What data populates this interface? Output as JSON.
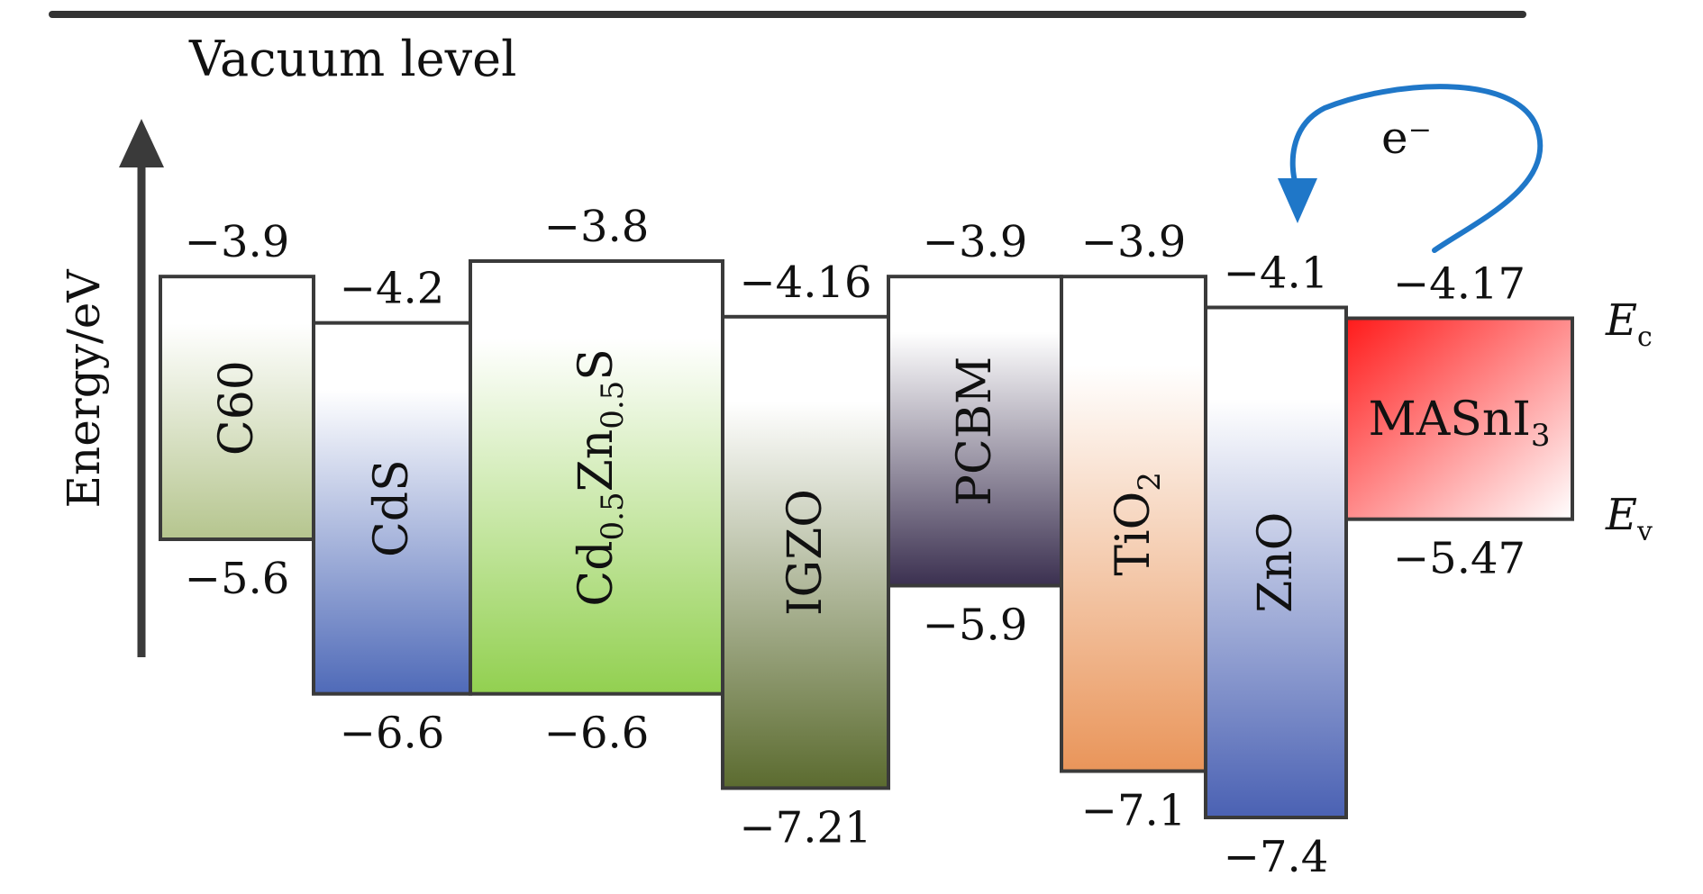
{
  "title": "Vacuum level",
  "y_axis_label": "Energy/eV",
  "electron_label": "e⁻",
  "level_labels": {
    "conduction": "E",
    "conduction_sub": "c",
    "valence": "E",
    "valence_sub": "v"
  },
  "materials": [
    {
      "name": "C60",
      "sub": "",
      "cb": -3.9,
      "vb": -5.6,
      "cb_label": "−3.9",
      "vb_label": "−5.6",
      "colors": [
        "#ffffff",
        "#b5c58e"
      ],
      "text_vertical": true
    },
    {
      "name": "CdS",
      "sub": "",
      "cb": -4.2,
      "vb": -6.6,
      "cb_label": "−4.2",
      "vb_label": "−6.6",
      "colors": [
        "#ffffff",
        "#4f6ab8"
      ],
      "text_vertical": true
    },
    {
      "name": "Cd0.5Zn0.5S",
      "parts": [
        "Cd",
        "0.5",
        "Zn",
        "0.5",
        "S"
      ],
      "cb": -3.8,
      "vb": -6.6,
      "cb_label": "−3.8",
      "vb_label": "−6.6",
      "colors": [
        "#ffffff",
        "#92d050"
      ],
      "text_vertical": true
    },
    {
      "name": "IGZO",
      "sub": "",
      "cb": -4.16,
      "vb": -7.21,
      "cb_label": "−4.16",
      "vb_label": "−7.21",
      "colors": [
        "#ffffff",
        "#5b6b2f"
      ],
      "text_vertical": true
    },
    {
      "name": "PCBM",
      "sub": "",
      "cb": -3.9,
      "vb": -5.9,
      "cb_label": "−3.9",
      "vb_label": "−5.9",
      "colors": [
        "#ffffff",
        "#3b3050"
      ],
      "text_vertical": true
    },
    {
      "name": "TiO2",
      "parts": [
        "TiO",
        "2"
      ],
      "cb": -3.9,
      "vb": -7.1,
      "cb_label": "−3.9",
      "vb_label": "−7.1",
      "colors": [
        "#ffffff",
        "#e9955a"
      ],
      "text_vertical": true
    },
    {
      "name": "ZnO",
      "sub": "",
      "cb": -4.1,
      "vb": -7.4,
      "cb_label": "−4.1",
      "vb_label": "−7.4",
      "colors": [
        "#ffffff",
        "#4a61b3"
      ],
      "text_vertical": true
    },
    {
      "name": "MASnI3",
      "parts": [
        "MASnI",
        "3"
      ],
      "cb": -4.17,
      "vb": -5.47,
      "cb_label": "−4.17",
      "vb_label": "−5.47",
      "colors": [
        "#ff1a1a",
        "#ffffff"
      ],
      "text_vertical": false
    }
  ]
}
